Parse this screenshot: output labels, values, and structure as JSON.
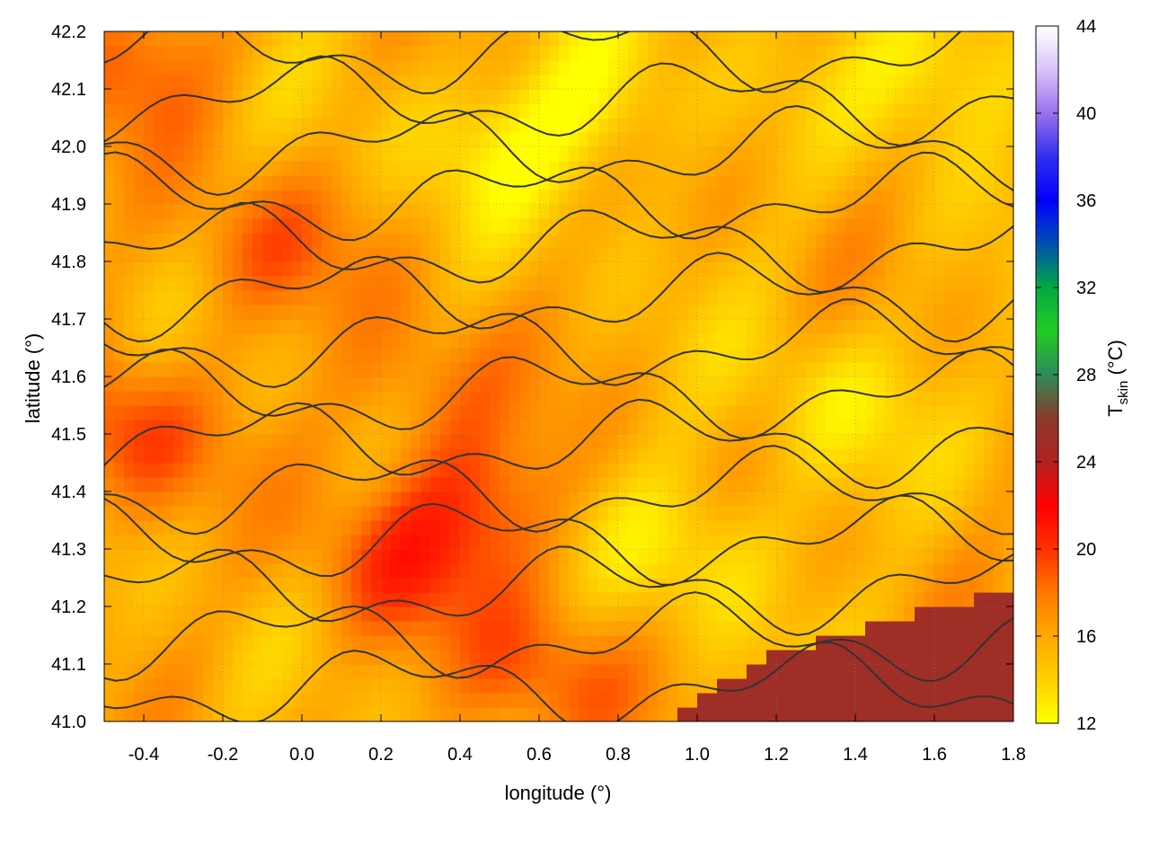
{
  "chart_data": {
    "type": "heatmap",
    "title": "",
    "xlabel": "longitude (°)",
    "ylabel": "latitude (°)",
    "xlim": [
      -0.5,
      1.8
    ],
    "ylim": [
      41.0,
      42.2
    ],
    "x_ticks": [
      -0.4,
      -0.2,
      0.0,
      0.2,
      0.4,
      0.6,
      0.8,
      1.0,
      1.2,
      1.4,
      1.6,
      1.8
    ],
    "x_tick_labels": [
      "-0.4",
      "-0.2",
      "0.0",
      "0.2",
      "0.4",
      "0.6",
      "0.8",
      "1.0",
      "1.2",
      "1.4",
      "1.6",
      "1.8"
    ],
    "y_ticks": [
      41.0,
      41.1,
      41.2,
      41.3,
      41.4,
      41.5,
      41.6,
      41.7,
      41.8,
      41.9,
      42.0,
      42.1,
      42.2
    ],
    "y_tick_labels": [
      "41.0",
      "41.1",
      "41.2",
      "41.3",
      "41.4",
      "41.5",
      "41.6",
      "41.7",
      "41.8",
      "41.9",
      "42.0",
      "42.1",
      "42.2"
    ],
    "grid": true,
    "colorbar": {
      "label_main": "T",
      "label_sub": "skin",
      "label_tail": " (°C)",
      "range": [
        12,
        44
      ],
      "ticks": [
        12,
        16,
        20,
        24,
        28,
        32,
        36,
        40,
        44
      ],
      "tick_labels": [
        "12",
        "16",
        "20",
        "24",
        "28",
        "32",
        "36",
        "40",
        "44"
      ],
      "colormap": [
        {
          "v": 12,
          "c": "#ffff00"
        },
        {
          "v": 14,
          "c": "#ffd000"
        },
        {
          "v": 16,
          "c": "#ffa800"
        },
        {
          "v": 18,
          "c": "#ff7800"
        },
        {
          "v": 20,
          "c": "#ff3000"
        },
        {
          "v": 22,
          "c": "#ff0000"
        },
        {
          "v": 24,
          "c": "#b22222"
        },
        {
          "v": 26,
          "c": "#8b3a2a"
        },
        {
          "v": 28,
          "c": "#2e8b57"
        },
        {
          "v": 30,
          "c": "#22cc22"
        },
        {
          "v": 32,
          "c": "#00aa44"
        },
        {
          "v": 34,
          "c": "#0050b0"
        },
        {
          "v": 36,
          "c": "#0000ff"
        },
        {
          "v": 38,
          "c": "#3030ee"
        },
        {
          "v": 40,
          "c": "#9a70ee"
        },
        {
          "v": 42,
          "c": "#d8c4f8"
        },
        {
          "v": 44,
          "c": "#ffffff"
        }
      ]
    },
    "field_features": [
      {
        "kind": "sea",
        "value": 25,
        "coast": [
          [
            0.93,
            41.0
          ],
          [
            1.05,
            41.06
          ],
          [
            1.2,
            41.12
          ],
          [
            1.35,
            41.15
          ],
          [
            1.5,
            41.18
          ],
          [
            1.65,
            41.2
          ],
          [
            1.8,
            41.24
          ]
        ]
      },
      {
        "kind": "hot_patch",
        "lon": -0.45,
        "lat": 41.5,
        "value": 19.5
      },
      {
        "kind": "hot_patch",
        "lon": -0.1,
        "lat": 41.82,
        "value": 18.5
      },
      {
        "kind": "hot_patch",
        "lon": 0.22,
        "lat": 41.27,
        "value": 19
      },
      {
        "kind": "hot_patch",
        "lon": 0.45,
        "lat": 41.38,
        "value": 19
      },
      {
        "kind": "hot_patch",
        "lon": 0.6,
        "lat": 41.08,
        "value": 19
      },
      {
        "kind": "hot_patch",
        "lon": -0.42,
        "lat": 42.15,
        "value": 18.5
      },
      {
        "kind": "hot_patch",
        "lon": 0.3,
        "lat": 41.58,
        "value": 18
      },
      {
        "kind": "cool_patch",
        "lon": 1.62,
        "lat": 42.15,
        "value": 12
      },
      {
        "kind": "cool_patch",
        "lon": 0.75,
        "lat": 42.08,
        "value": 12.5
      },
      {
        "kind": "cool_patch",
        "lon": 1.35,
        "lat": 41.55,
        "value": 13.5
      },
      {
        "kind": "cool_patch",
        "lon": 1.0,
        "lat": 41.3,
        "value": 13
      },
      {
        "kind": "cool_patch",
        "lon": 0.45,
        "lat": 42.0,
        "value": 13.5
      }
    ]
  }
}
